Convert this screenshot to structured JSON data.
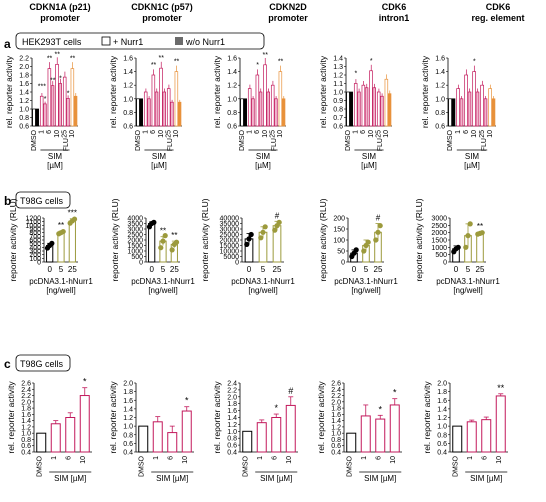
{
  "panel_labels": [
    "a",
    "b",
    "c"
  ],
  "col_titles": [
    [
      "CDKN1A (p21)",
      "promoter"
    ],
    [
      "CDKN1C (p57)",
      "promoter"
    ],
    [
      "CDKN2D",
      "promoter"
    ],
    [
      "CDK6",
      "intron1"
    ],
    [
      "CDK6",
      "reg. element"
    ]
  ],
  "row_a": {
    "cell_box": "HEK293T cells",
    "legend": [
      "+ Nurr1",
      "w/o Nurr1"
    ],
    "ylabel": "rel. reporter activity",
    "xticks": [
      "DMSO",
      "1",
      "6",
      "10",
      "25",
      "10"
    ],
    "xgroup": [
      "SIM",
      "[µM]"
    ],
    "xflu": "FLU"
  },
  "row_b": {
    "cell_box": "T98G cells",
    "ylabel": "reporter activity (RLU)",
    "xticks": [
      "0",
      "5",
      "25"
    ],
    "xlabel": [
      "pcDNA3.1-hNurr1",
      "[ng/well]"
    ]
  },
  "row_c": {
    "cell_box": "T98G cells",
    "ylabel": "rel. reporter activity",
    "xticks": [
      "DMSO",
      "1",
      "6",
      "10"
    ],
    "xgroup": "SIM [µM]"
  },
  "colors": {
    "sim_plus_nurr1": "#c2185b",
    "sim_light": "#f0b4cc",
    "flu_plus_nurr1": "#f6b86a",
    "flu_dark": "#e8913a",
    "wo_nurr1": "#5a5a5a",
    "olive": "#9c9a3c",
    "dmso": "#000000"
  },
  "chart_data": [
    {
      "panel": "a",
      "type": "bar",
      "title": "CDKN1A (p21) promoter",
      "ylabel": "rel. reporter activity",
      "ylim": [
        0.6,
        2.2
      ],
      "yticks": [
        0.6,
        0.8,
        1.0,
        1.2,
        1.4,
        1.6,
        1.8,
        2.0,
        2.2
      ],
      "categories": [
        "DMSO",
        "1",
        "6",
        "10",
        "25",
        "10"
      ],
      "series": [
        {
          "name": "+ Nurr1",
          "values": [
            1.0,
            1.3,
            1.95,
            2.05,
            1.75,
            1.95
          ]
        },
        {
          "name": "w/o Nurr1",
          "values": [
            1.0,
            1.12,
            1.55,
            1.6,
            1.25,
            1.3
          ]
        }
      ],
      "annotations": [
        [
          "***",
          1,
          0
        ],
        [
          "**",
          2,
          0
        ],
        [
          "**",
          3,
          0
        ],
        [
          "**",
          5,
          0
        ],
        [
          "*",
          1,
          1
        ],
        [
          "**",
          2,
          1
        ],
        [
          "*",
          3,
          1
        ],
        [
          "*",
          4,
          1
        ]
      ]
    },
    {
      "panel": "a",
      "type": "bar",
      "title": "CDKN1C (p57) promoter",
      "ylabel": "rel. reporter activity",
      "ylim": [
        0.6,
        1.6
      ],
      "yticks": [
        0.6,
        0.8,
        1.0,
        1.2,
        1.4,
        1.6
      ],
      "categories": [
        "DMSO",
        "1",
        "6",
        "10",
        "25",
        "10"
      ],
      "series": [
        {
          "name": "+ Nurr1",
          "values": [
            1.0,
            1.1,
            1.35,
            1.45,
            1.15,
            1.4
          ]
        },
        {
          "name": "w/o Nurr1",
          "values": [
            1.0,
            1.0,
            1.1,
            1.1,
            0.95,
            0.95
          ]
        }
      ],
      "annotations": [
        [
          "**",
          2,
          0
        ],
        [
          "**",
          3,
          0
        ],
        [
          "**",
          5,
          0
        ]
      ]
    },
    {
      "panel": "a",
      "type": "bar",
      "title": "CDKN2D promoter",
      "ylabel": "rel. reporter activity",
      "ylim": [
        0.6,
        1.6
      ],
      "yticks": [
        0.6,
        0.8,
        1.0,
        1.2,
        1.4,
        1.6
      ],
      "categories": [
        "DMSO",
        "1",
        "6",
        "10",
        "25",
        "10"
      ],
      "series": [
        {
          "name": "+ Nurr1",
          "values": [
            1.0,
            1.15,
            1.35,
            1.5,
            1.2,
            1.4
          ]
        },
        {
          "name": "w/o Nurr1",
          "values": [
            1.0,
            1.0,
            1.1,
            1.1,
            1.0,
            1.0
          ]
        }
      ],
      "annotations": [
        [
          "*",
          2,
          0
        ],
        [
          "**",
          3,
          0
        ],
        [
          "**",
          5,
          0
        ]
      ]
    },
    {
      "panel": "a",
      "type": "bar",
      "title": "CDK6 intron1",
      "ylabel": "rel. reporter activity",
      "ylim": [
        0.6,
        1.4
      ],
      "yticks": [
        0.6,
        0.7,
        0.8,
        0.9,
        1.0,
        1.1,
        1.2,
        1.3,
        1.4
      ],
      "categories": [
        "DMSO",
        "1",
        "6",
        "10",
        "25",
        "10"
      ],
      "series": [
        {
          "name": "+ Nurr1",
          "values": [
            1.0,
            1.1,
            1.08,
            1.25,
            1.0,
            1.15
          ]
        },
        {
          "name": "w/o Nurr1",
          "values": [
            1.0,
            1.0,
            1.05,
            1.05,
            0.95,
            0.98
          ]
        }
      ],
      "annotations": [
        [
          "*",
          1,
          0
        ],
        [
          "*",
          3,
          0
        ]
      ]
    },
    {
      "panel": "a",
      "type": "bar",
      "title": "CDK6 reg. element",
      "ylabel": "rel. reporter activity",
      "ylim": [
        0.6,
        1.6
      ],
      "yticks": [
        0.6,
        0.8,
        1.0,
        1.2,
        1.4,
        1.6
      ],
      "categories": [
        "DMSO",
        "1",
        "6",
        "10",
        "25",
        "10"
      ],
      "series": [
        {
          "name": "+ Nurr1",
          "values": [
            1.0,
            1.15,
            1.35,
            1.4,
            1.2,
            1.15
          ]
        },
        {
          "name": "w/o Nurr1",
          "values": [
            1.0,
            1.0,
            1.1,
            1.1,
            1.0,
            1.0
          ]
        }
      ],
      "annotations": [
        [
          "*",
          3,
          0
        ]
      ]
    },
    {
      "panel": "b",
      "type": "bar",
      "ylabel": "reporter activity (RLU)",
      "ylim": [
        0,
        1200
      ],
      "yticks": [
        0,
        100,
        200,
        300,
        400,
        500,
        600,
        700,
        800,
        900,
        1000,
        1100,
        1200
      ],
      "categories": [
        "0",
        "5",
        "25"
      ],
      "values": [
        450,
        800,
        1120
      ],
      "errors": [
        60,
        40,
        60
      ],
      "points": [
        [
          380,
          450,
          510
        ],
        [
          770,
          800,
          830
        ],
        [
          1060,
          1120,
          1170
        ]
      ],
      "annotations": [
        "",
        "**",
        "***"
      ]
    },
    {
      "panel": "b",
      "type": "bar",
      "ylabel": "reporter activity (RLU)",
      "ylim": [
        0,
        4000
      ],
      "yticks": [
        0,
        500,
        1000,
        1500,
        2000,
        2500,
        3000,
        3500,
        4000
      ],
      "categories": [
        "0",
        "5",
        "25"
      ],
      "values": [
        3500,
        1900,
        1600
      ],
      "errors": [
        150,
        400,
        300
      ],
      "points": [
        [
          3200,
          3500,
          3600
        ],
        [
          1300,
          1900,
          2400
        ],
        [
          1100,
          1600,
          1800
        ]
      ],
      "annotations": [
        "",
        "**",
        "**"
      ]
    },
    {
      "panel": "b",
      "type": "bar",
      "ylabel": "reporter activity (RLU)",
      "ylim": [
        0,
        40000
      ],
      "yticks": [
        0,
        5000,
        10000,
        15000,
        20000,
        25000,
        30000,
        35000,
        40000
      ],
      "categories": [
        "0",
        "5",
        "25"
      ],
      "values": [
        21000,
        27000,
        33000
      ],
      "errors": [
        5000,
        5000,
        4000
      ],
      "points": [
        [
          16000,
          21000,
          25000
        ],
        [
          22000,
          27000,
          32000
        ],
        [
          29000,
          33000,
          36000
        ]
      ],
      "annotations": [
        "",
        "",
        "#"
      ]
    },
    {
      "panel": "b",
      "type": "bar",
      "ylabel": "reporter activity (RLU)",
      "ylim": [
        0,
        200
      ],
      "yticks": [
        0,
        50,
        100,
        150,
        200
      ],
      "categories": [
        "0",
        "5",
        "25"
      ],
      "values": [
        40,
        75,
        135
      ],
      "errors": [
        15,
        25,
        40
      ],
      "points": [
        [
          25,
          40,
          55
        ],
        [
          50,
          75,
          90
        ],
        [
          100,
          135,
          165
        ]
      ],
      "annotations": [
        "",
        "",
        "#"
      ]
    },
    {
      "panel": "b",
      "type": "bar",
      "ylabel": "reporter activity (RLU)",
      "ylim": [
        0,
        3000
      ],
      "yticks": [
        0,
        500,
        1000,
        1500,
        2000,
        2500,
        3000
      ],
      "categories": [
        "0",
        "5",
        "25"
      ],
      "values": [
        900,
        1800,
        1950
      ],
      "errors": [
        200,
        800,
        100
      ],
      "points": [
        [
          700,
          900,
          1000
        ],
        [
          1000,
          1800,
          2600
        ],
        [
          1900,
          1950,
          2000
        ]
      ],
      "annotations": [
        "",
        "",
        "**"
      ]
    },
    {
      "panel": "c",
      "type": "bar",
      "ylabel": "rel. reporter activity",
      "ylim": [
        0.4,
        2.6
      ],
      "yticks": [
        0.4,
        0.6,
        0.8,
        1.0,
        1.2,
        1.4,
        1.6,
        1.8,
        2.0,
        2.2,
        2.4,
        2.6
      ],
      "categories": [
        "DMSO",
        "1",
        "6",
        "10"
      ],
      "values": [
        1.0,
        1.3,
        1.5,
        2.2
      ],
      "errors": [
        0,
        0.1,
        0.15,
        0.25
      ],
      "annotations": [
        "",
        "",
        "",
        "*"
      ]
    },
    {
      "panel": "c",
      "type": "bar",
      "ylabel": "rel. reporter activity",
      "ylim": [
        0.4,
        2.0
      ],
      "yticks": [
        0.4,
        0.6,
        0.8,
        1.0,
        1.2,
        1.4,
        1.6,
        1.8,
        2.0
      ],
      "categories": [
        "DMSO",
        "1",
        "6",
        "10"
      ],
      "values": [
        1.0,
        1.1,
        0.85,
        1.35
      ],
      "errors": [
        0,
        0.12,
        0.15,
        0.1
      ],
      "annotations": [
        "",
        "",
        "",
        "*"
      ]
    },
    {
      "panel": "c",
      "type": "bar",
      "ylabel": "rel. reporter activity",
      "ylim": [
        0.4,
        2.4
      ],
      "yticks": [
        0.4,
        0.6,
        0.8,
        1.0,
        1.2,
        1.4,
        1.6,
        1.8,
        2.0,
        2.2,
        2.4
      ],
      "categories": [
        "DMSO",
        "1",
        "6",
        "10"
      ],
      "values": [
        1.0,
        1.25,
        1.4,
        1.75
      ],
      "errors": [
        0,
        0.08,
        0.1,
        0.25
      ],
      "annotations": [
        "",
        "",
        "*",
        "#"
      ]
    },
    {
      "panel": "c",
      "type": "bar",
      "ylabel": "rel. reporter activity",
      "ylim": [
        0.4,
        2.6
      ],
      "yticks": [
        0.4,
        0.6,
        0.8,
        1.0,
        1.2,
        1.4,
        1.6,
        1.8,
        2.0,
        2.2,
        2.4,
        2.6
      ],
      "categories": [
        "DMSO",
        "1",
        "6",
        "10"
      ],
      "values": [
        1.0,
        1.55,
        1.45,
        1.9
      ],
      "errors": [
        0,
        0.35,
        0.12,
        0.2
      ],
      "annotations": [
        "",
        "",
        "*",
        "*"
      ]
    },
    {
      "panel": "c",
      "type": "bar",
      "ylabel": "rel. reporter activity",
      "ylim": [
        0.4,
        2.0
      ],
      "yticks": [
        0.4,
        0.6,
        0.8,
        1.0,
        1.2,
        1.4,
        1.6,
        1.8,
        2.0
      ],
      "categories": [
        "DMSO",
        "1",
        "6",
        "10"
      ],
      "values": [
        1.0,
        1.1,
        1.15,
        1.7
      ],
      "errors": [
        0,
        0.04,
        0.06,
        0.05
      ],
      "annotations": [
        "",
        "",
        "",
        "**"
      ]
    }
  ]
}
